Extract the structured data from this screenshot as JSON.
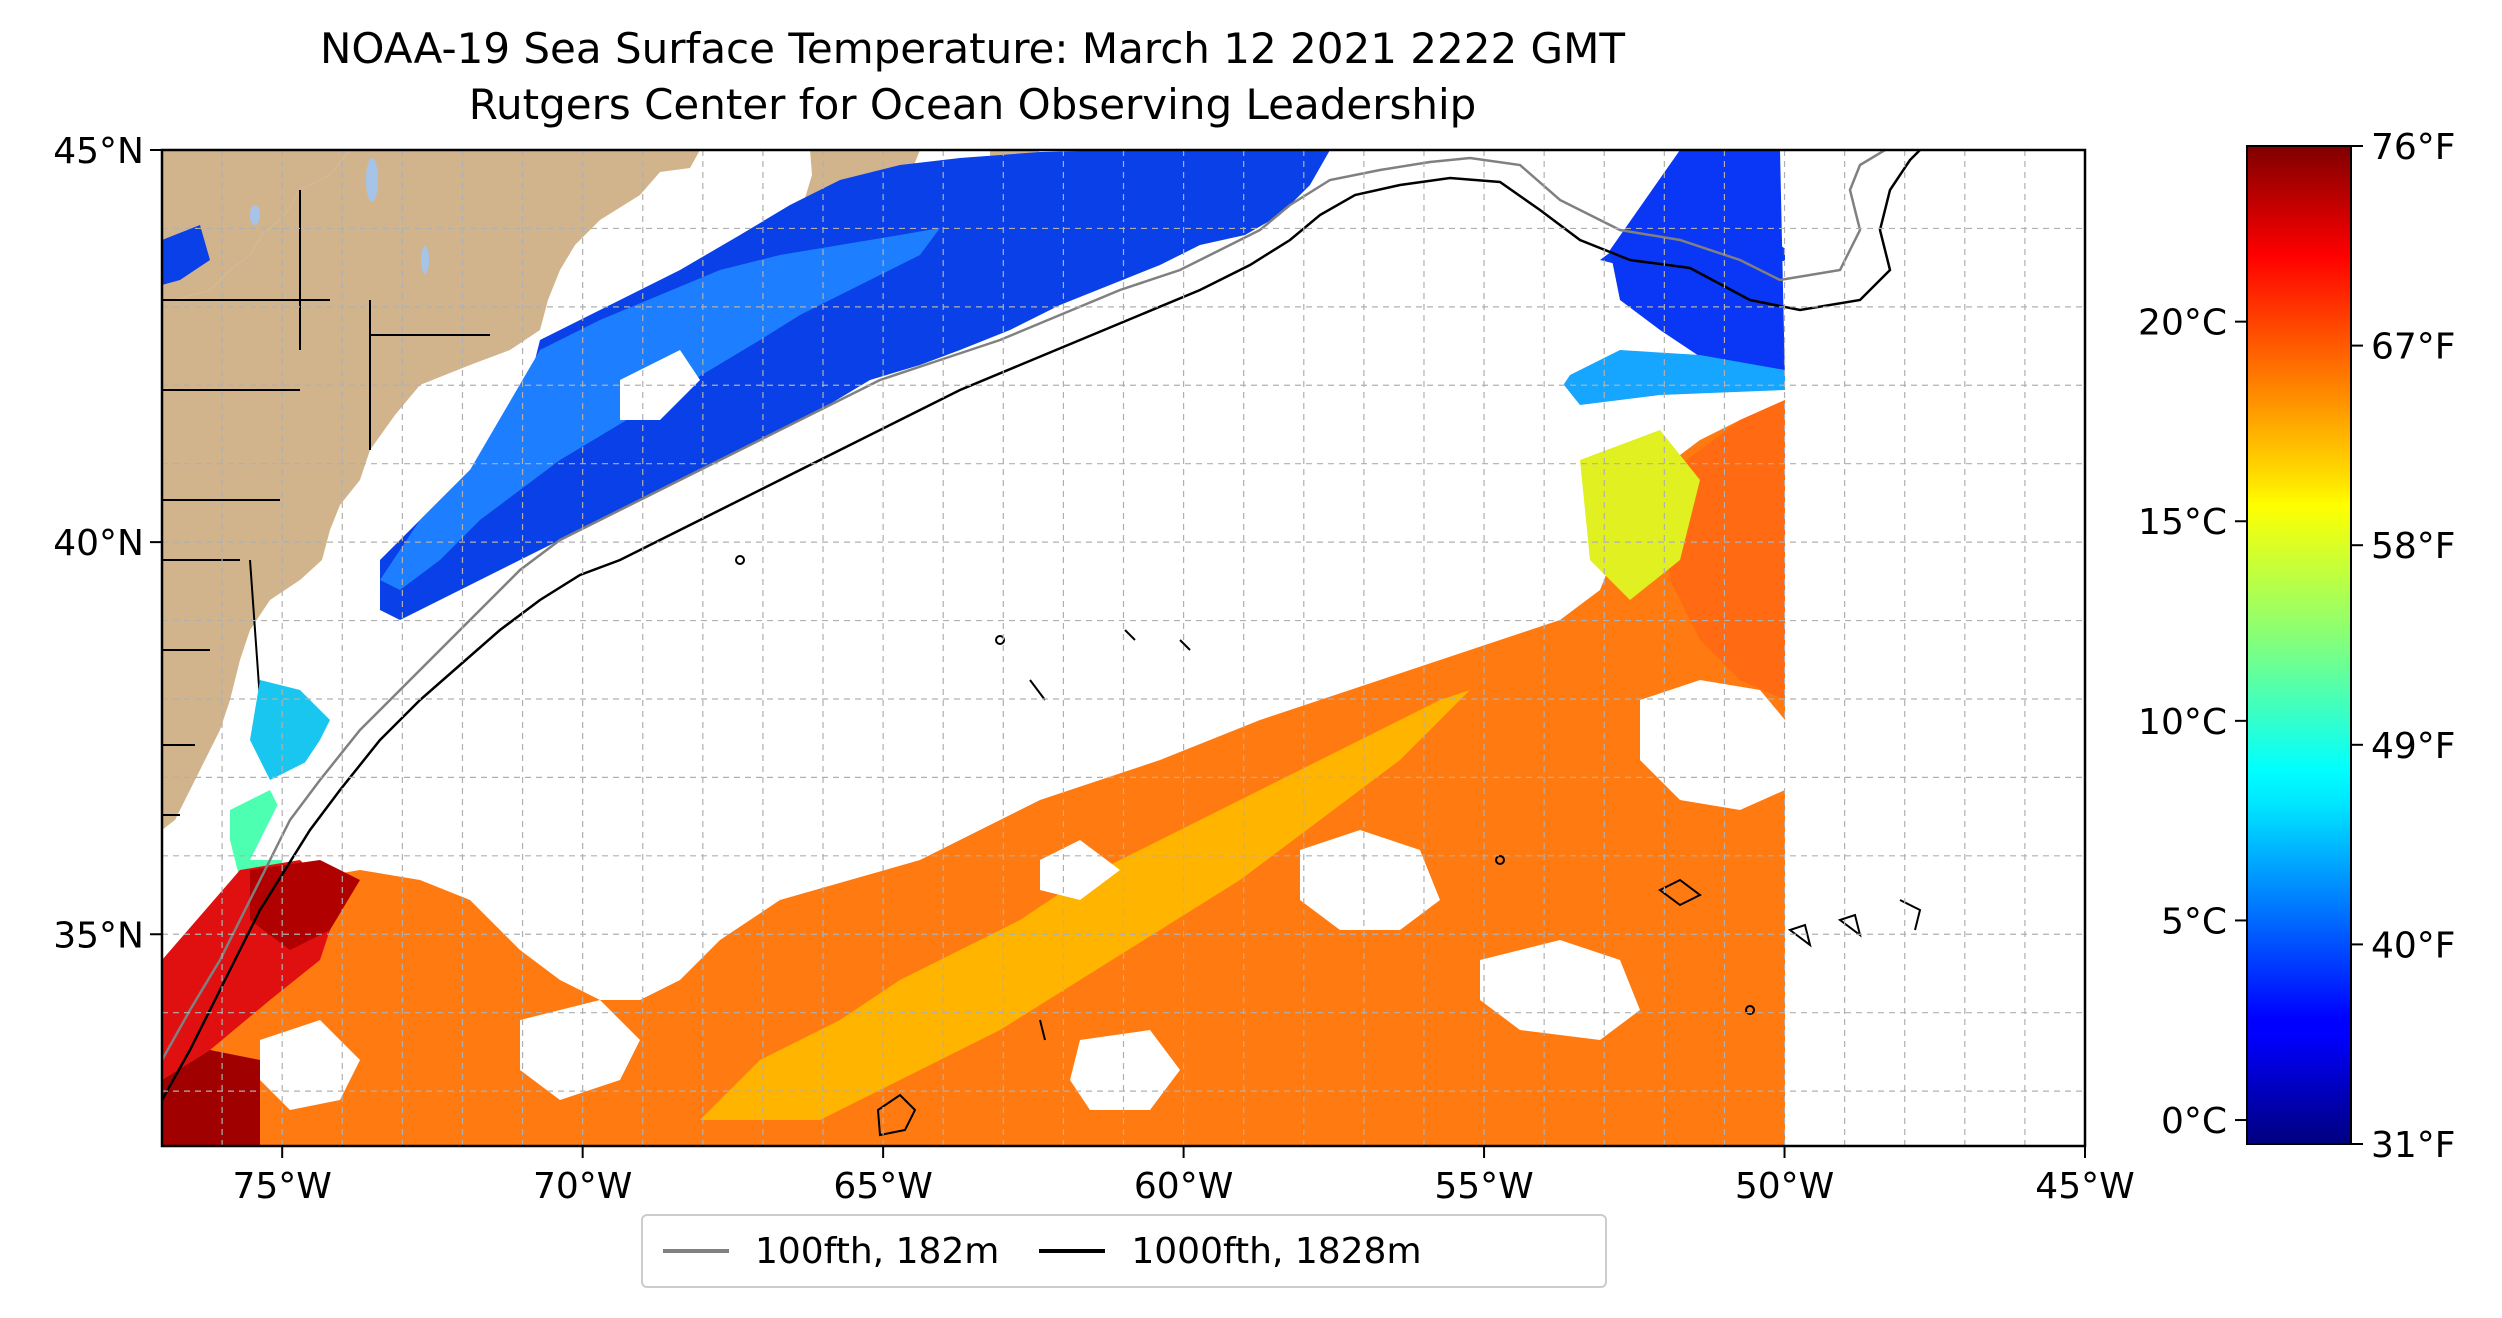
{
  "title": "NOAA-19 Sea Surface Temperature: March 12 2021 2222 GMT",
  "subtitle": "Rutgers Center for Ocean Observing Leadership",
  "map": {
    "lat_range": [
      32.3,
      45.0
    ],
    "lon_range": [
      -77.0,
      -45.0
    ],
    "lat_ticks": [
      {
        "value": 45,
        "label": "45°N"
      },
      {
        "value": 40,
        "label": "40°N"
      },
      {
        "value": 35,
        "label": "35°N"
      }
    ],
    "lon_ticks": [
      {
        "value": -75,
        "label": "75°W"
      },
      {
        "value": -70,
        "label": "70°W"
      },
      {
        "value": -65,
        "label": "65°W"
      },
      {
        "value": -60,
        "label": "60°W"
      },
      {
        "value": -55,
        "label": "55°W"
      },
      {
        "value": -50,
        "label": "50°W"
      },
      {
        "value": -45,
        "label": "45°W"
      }
    ],
    "gridlines": true,
    "data_coverage_east_limit_lon": -50,
    "land_color": "#d2b48c",
    "lake_color": "#a5c4e8"
  },
  "legend": {
    "placement": "bottom-center",
    "items": [
      {
        "label": "100fth, 182m",
        "color": "#808080"
      },
      {
        "label": "1000fth, 1828m",
        "color": "#000000"
      }
    ]
  },
  "colorbar": {
    "colormap": "jet",
    "c_range": [
      -0.6,
      24.4
    ],
    "celsius_ticks": [
      {
        "value": 0,
        "label": "0°C"
      },
      {
        "value": 5,
        "label": "5°C"
      },
      {
        "value": 10,
        "label": "10°C"
      },
      {
        "value": 15,
        "label": "15°C"
      },
      {
        "value": 20,
        "label": "20°C"
      }
    ],
    "fahrenheit_ticks": [
      {
        "value": -0.6,
        "label": "31°F"
      },
      {
        "value": 4.4,
        "label": "40°F"
      },
      {
        "value": 9.4,
        "label": "49°F"
      },
      {
        "value": 14.4,
        "label": "58°F"
      },
      {
        "value": 19.4,
        "label": "67°F"
      },
      {
        "value": 24.4,
        "label": "76°F"
      }
    ]
  }
}
